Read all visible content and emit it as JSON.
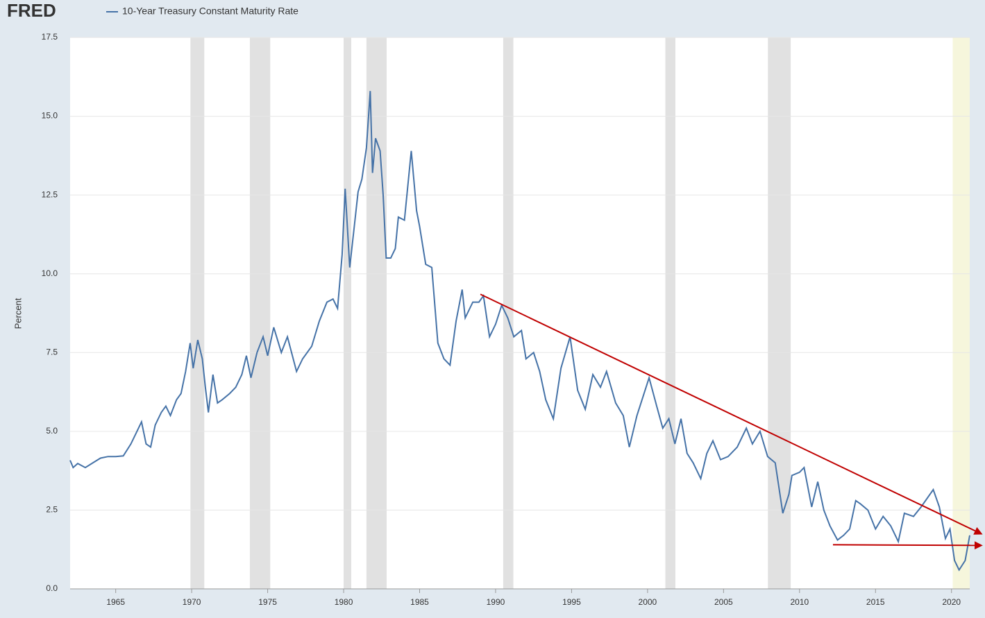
{
  "chart_data": {
    "type": "line",
    "logo": "FRED",
    "title": "10-Year Treasury Constant Maturity Rate",
    "ylabel": "Percent",
    "xlim": [
      1962.0,
      2021.2
    ],
    "ylim": [
      0,
      17.5
    ],
    "xticks": [
      1965,
      1970,
      1975,
      1980,
      1985,
      1990,
      1995,
      2000,
      2005,
      2010,
      2015,
      2020
    ],
    "yticks": [
      {
        "value": 0,
        "label": "0.0"
      },
      2.5,
      {
        "value": 5,
        "label": "5.0"
      },
      7.5,
      {
        "value": 10,
        "label": "10.0"
      },
      12.5,
      {
        "value": 15,
        "label": "15.0"
      },
      17.5
    ],
    "grid": true,
    "shaded_periods": [
      {
        "start": 1969.92,
        "end": 1970.83,
        "color": "#e1e1e1"
      },
      {
        "start": 1973.83,
        "end": 1975.17,
        "color": "#e1e1e1"
      },
      {
        "start": 1980.0,
        "end": 1980.5,
        "color": "#e1e1e1"
      },
      {
        "start": 1981.5,
        "end": 1982.83,
        "color": "#e1e1e1"
      },
      {
        "start": 1990.5,
        "end": 1991.17,
        "color": "#e1e1e1"
      },
      {
        "start": 2001.17,
        "end": 2001.83,
        "color": "#e1e1e1"
      },
      {
        "start": 2007.92,
        "end": 2009.42,
        "color": "#e1e1e1"
      },
      {
        "start": 2020.08,
        "end": 2021.2,
        "color": "#f6f6dc"
      }
    ],
    "series": [
      {
        "name": "10-Year Treasury Constant Maturity Rate",
        "color": "#4572a7",
        "x": [
          1962.0,
          1962.2,
          1962.5,
          1963.0,
          1963.5,
          1964.0,
          1964.5,
          1965.0,
          1965.5,
          1966.0,
          1966.3,
          1966.7,
          1967.0,
          1967.3,
          1967.6,
          1968.0,
          1968.3,
          1968.6,
          1969.0,
          1969.3,
          1969.6,
          1969.9,
          1970.1,
          1970.4,
          1970.7,
          1970.9,
          1971.1,
          1971.4,
          1971.7,
          1972.0,
          1972.5,
          1972.9,
          1973.3,
          1973.6,
          1973.9,
          1974.3,
          1974.7,
          1975.0,
          1975.4,
          1975.9,
          1976.3,
          1976.9,
          1977.3,
          1977.9,
          1978.4,
          1978.9,
          1979.3,
          1979.6,
          1979.9,
          1980.1,
          1980.4,
          1980.7,
          1980.95,
          1981.2,
          1981.5,
          1981.75,
          1981.9,
          1982.1,
          1982.4,
          1982.6,
          1982.8,
          1983.1,
          1983.4,
          1983.6,
          1984.0,
          1984.45,
          1984.8,
          1985.0,
          1985.4,
          1985.8,
          1986.2,
          1986.6,
          1987.0,
          1987.4,
          1987.8,
          1988.0,
          1988.5,
          1988.9,
          1989.2,
          1989.6,
          1990.0,
          1990.4,
          1990.8,
          1991.2,
          1991.7,
          1992.0,
          1992.5,
          1992.9,
          1993.3,
          1993.8,
          1994.3,
          1994.9,
          1995.4,
          1995.9,
          1996.4,
          1996.9,
          1997.3,
          1997.9,
          1998.4,
          1998.8,
          1999.3,
          1999.9,
          2000.1,
          2000.6,
          2001.0,
          2001.4,
          2001.8,
          2002.2,
          2002.6,
          2003.0,
          2003.5,
          2003.9,
          2004.3,
          2004.8,
          2005.3,
          2005.9,
          2006.5,
          2006.9,
          2007.4,
          2007.9,
          2008.4,
          2008.9,
          2009.3,
          2009.5,
          2010.0,
          2010.3,
          2010.8,
          2011.2,
          2011.6,
          2012.0,
          2012.5,
          2012.9,
          2013.3,
          2013.7,
          2014.0,
          2014.5,
          2015.0,
          2015.5,
          2016.0,
          2016.5,
          2016.9,
          2017.5,
          2018.0,
          2018.8,
          2019.2,
          2019.6,
          2019.9,
          2020.2,
          2020.5,
          2020.9,
          2021.2
        ],
        "values": [
          4.08,
          3.85,
          3.98,
          3.85,
          4.0,
          4.15,
          4.2,
          4.2,
          4.22,
          4.6,
          4.9,
          5.3,
          4.6,
          4.5,
          5.2,
          5.6,
          5.8,
          5.5,
          6.0,
          6.2,
          6.9,
          7.8,
          7.0,
          7.9,
          7.3,
          6.4,
          5.6,
          6.8,
          5.9,
          6.0,
          6.2,
          6.4,
          6.8,
          7.4,
          6.7,
          7.5,
          8.0,
          7.4,
          8.3,
          7.5,
          8.0,
          6.9,
          7.3,
          7.7,
          8.5,
          9.1,
          9.2,
          8.9,
          10.6,
          12.7,
          10.2,
          11.5,
          12.6,
          13.0,
          14.0,
          15.8,
          13.2,
          14.3,
          13.9,
          12.5,
          10.5,
          10.5,
          10.8,
          11.8,
          11.7,
          13.9,
          12.0,
          11.5,
          10.3,
          10.2,
          7.8,
          7.3,
          7.1,
          8.5,
          9.5,
          8.6,
          9.1,
          9.1,
          9.3,
          8.0,
          8.4,
          9.0,
          8.6,
          8.0,
          8.2,
          7.3,
          7.5,
          6.9,
          6.0,
          5.4,
          7.0,
          8.0,
          6.3,
          5.7,
          6.8,
          6.4,
          6.9,
          5.9,
          5.5,
          4.5,
          5.5,
          6.4,
          6.7,
          5.8,
          5.1,
          5.4,
          4.6,
          5.4,
          4.3,
          4.0,
          3.5,
          4.3,
          4.7,
          4.1,
          4.2,
          4.5,
          5.1,
          4.6,
          5.0,
          4.2,
          4.0,
          2.4,
          3.0,
          3.6,
          3.7,
          3.85,
          2.6,
          3.4,
          2.5,
          2.0,
          1.55,
          1.7,
          1.9,
          2.8,
          2.7,
          2.5,
          1.9,
          2.3,
          2.0,
          1.5,
          2.4,
          2.3,
          2.6,
          3.15,
          2.6,
          1.6,
          1.9,
          0.9,
          0.6,
          0.9,
          1.7
        ]
      }
    ],
    "trend_lines": [
      {
        "x": [
          1989.0,
          2021.95
        ],
        "y": [
          9.35,
          1.75
        ],
        "color": "#c00000"
      },
      {
        "x": [
          2012.2,
          2021.95
        ],
        "y": [
          1.4,
          1.38
        ],
        "color": "#c00000"
      }
    ]
  }
}
